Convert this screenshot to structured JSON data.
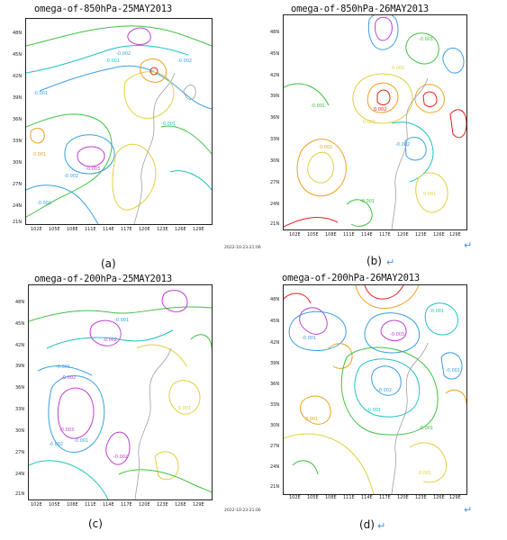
{
  "lat_labels": [
    "48N",
    "45N",
    "42N",
    "39N",
    "36N",
    "33N",
    "30N",
    "27N",
    "24N",
    "21N"
  ],
  "lon_labels": [
    "102E",
    "105E",
    "108E",
    "111E",
    "114E",
    "117E",
    "120E",
    "123E",
    "126E",
    "129E"
  ],
  "panels": [
    {
      "id": "a",
      "title": "omega-of-850hPa-25MAY2013",
      "caption": "(a)",
      "timestamp": "",
      "contour_labels": [
        "-0.001",
        "-0.002",
        "-0.001",
        "-0.003",
        "-0.002",
        "-0.001",
        "-0.001",
        "-0.002",
        "0.001"
      ]
    },
    {
      "id": "b",
      "title": "omega-of-850hPa-26MAY2013",
      "caption": "(b)",
      "timestamp": "2022-10-23-21:06",
      "contour_labels": [
        "0.001",
        "-0.001",
        "0.002",
        "-0.001",
        "0.001",
        "-0.002",
        "0.001",
        "0.001",
        "-0.001"
      ]
    },
    {
      "id": "c",
      "title": "omega-of-200hPa-25MAY2013",
      "caption": "(c)",
      "timestamp": "",
      "contour_labels": [
        "-0.001",
        "-0.002",
        "-0.001",
        "-0.002",
        "-0.003",
        "-0.002",
        "-0.001",
        "0.001",
        "-0.002"
      ]
    },
    {
      "id": "d",
      "title": "omega-of-200hPa-26MAY2013",
      "caption": "(d)",
      "timestamp": "2022-10-23-21:06",
      "contour_labels": [
        "-0.001",
        "-0.003",
        "-0.001",
        "-0.002",
        "0.001",
        "-0.001",
        "0.001",
        "-0.001",
        "-0.001"
      ]
    }
  ],
  "colors": {
    "negative_strong": "#c040d0",
    "negative_mid": "#3a9ee0",
    "negative_weak": "#20c0c0",
    "neutral": "#40c040",
    "positive_weak": "#e0d040",
    "positive_mid": "#f0a020",
    "positive_strong": "#e02020",
    "coastline": "#a0a0a0"
  }
}
